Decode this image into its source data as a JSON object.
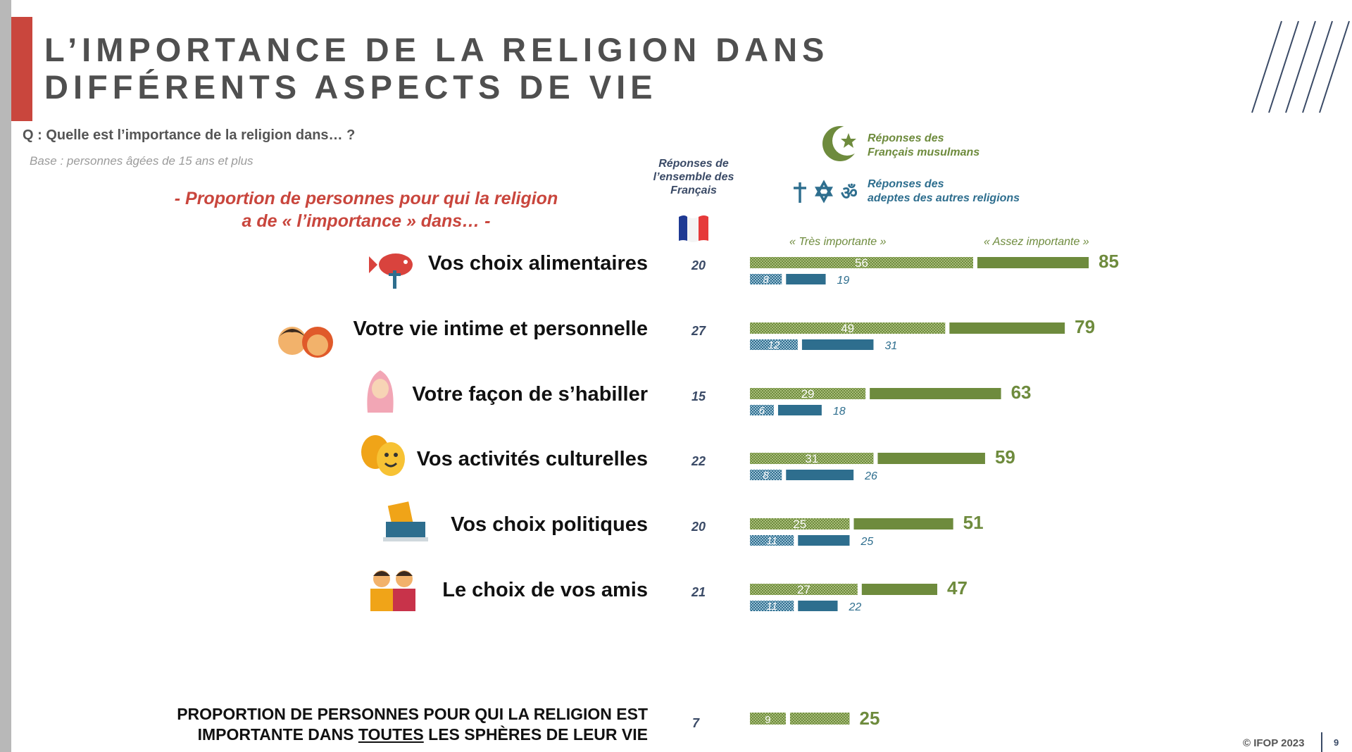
{
  "title": {
    "line1": "L’IMPORTANCE DE LA RELIGION DANS",
    "line2": "DIFFÉRENTS ASPECTS DE VIE"
  },
  "question": "Q : Quelle est l’importance de la religion dans… ?",
  "base": "Base : personnes âgées de 15 ans et plus",
  "proportion": {
    "line1": "- Proportion de personnes pour qui la religion",
    "line2": "a de « l’importance » dans… -"
  },
  "column_header": {
    "line1": "Réponses de",
    "line2": "l’ensemble des",
    "line3": "Français"
  },
  "legend": {
    "muslim_line1": "Réponses des",
    "muslim_line2": "Français musulmans",
    "other_line1": "Réponses des",
    "other_line2": "adeptes des autres religions"
  },
  "column_labels": {
    "tres": "« Très importante »",
    "assez": "« Assez importante »"
  },
  "colors": {
    "green": "#6e8b3d",
    "green_light": "#a8bd7a",
    "blue": "#2e6e8e",
    "blue_light": "#9cc0d4",
    "accent_red": "#c9463d",
    "navy": "#3a4a66"
  },
  "chart_data": {
    "type": "bar",
    "categories": [
      "Vos choix alimentaires",
      "Votre vie intime et personnelle",
      "Votre façon de s’habiller",
      "Vos activités culturelles",
      "Vos choix politiques",
      "Le choix de vos amis"
    ],
    "icons": [
      "fish-fork-icon",
      "couple-icon",
      "hijab-woman-icon",
      "theater-masks-icon",
      "ballot-box-icon",
      "friends-icon"
    ],
    "ensemble_francais": [
      "20",
      "27",
      "15",
      "22",
      "20",
      "21"
    ],
    "muslim_tres": [
      "56",
      "49",
      "29",
      "31",
      "25",
      "27"
    ],
    "muslim_total": [
      "85",
      "79",
      "63",
      "59",
      "51",
      "47"
    ],
    "other_tres": [
      "8",
      "12",
      "6",
      "8",
      "11",
      "11"
    ],
    "other_total": [
      "19",
      "31",
      "18",
      "26",
      "25",
      "22"
    ],
    "series": [
      {
        "name": "« Très importante »",
        "group": "muslim",
        "values": [
          56,
          49,
          29,
          31,
          25,
          27
        ]
      },
      {
        "name": "« Assez importante »",
        "group": "muslim",
        "values": [
          29,
          30,
          34,
          28,
          26,
          20
        ]
      },
      {
        "name": "« Très importante »",
        "group": "other",
        "values": [
          8,
          12,
          6,
          8,
          11,
          11
        ]
      },
      {
        "name": "« Assez importante »",
        "group": "other",
        "values": [
          11,
          19,
          12,
          18,
          14,
          11
        ]
      }
    ],
    "summary": {
      "label_line1": "PROPORTION DE PERSONNES POUR QUI LA RELIGION EST",
      "label_line2_pre": "IMPORTANTE DANS ",
      "label_line2_under": "TOUTES",
      "label_line2_post": " LES SPHÈRES DE LEUR VIE",
      "ensemble_francais": "7",
      "muslim_tres": 9,
      "muslim_total": 25,
      "muslim_tres_label": "9",
      "muslim_total_label": "25"
    }
  },
  "footer": {
    "copyright": "© IFOP 2023",
    "page": "9"
  }
}
